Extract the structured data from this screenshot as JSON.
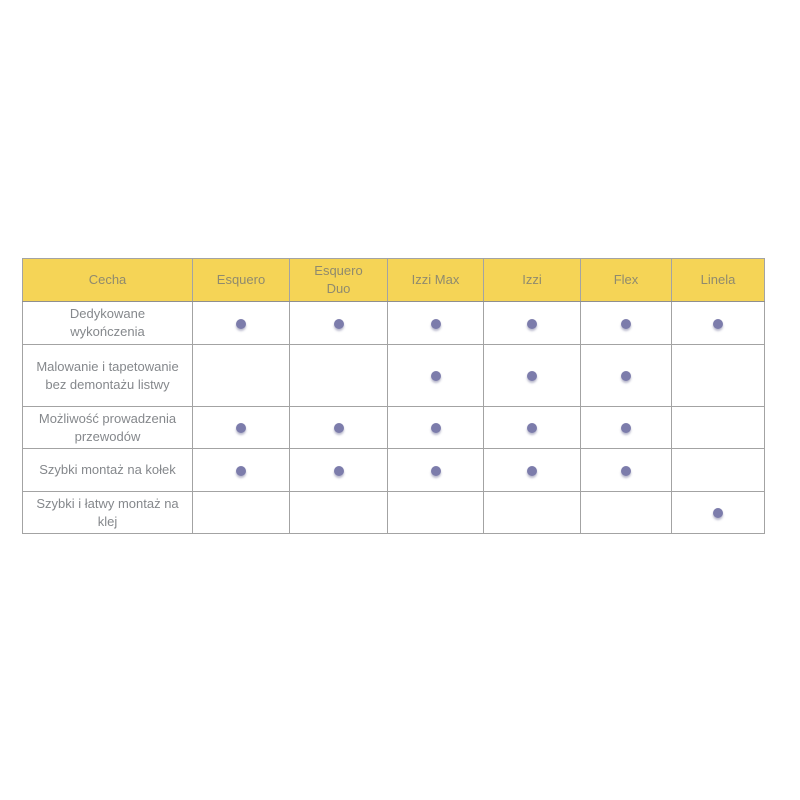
{
  "page": {
    "background": "#ffffff"
  },
  "table": {
    "title": "feature-comparison-table",
    "columns": [
      "Cecha",
      "Esquero",
      "Esquero Duo",
      "Izzi Max",
      "Izzi",
      "Flex",
      "Linela"
    ],
    "rows": [
      {
        "feature": "Dedykowane wykończenia",
        "values": [
          true,
          true,
          true,
          true,
          true,
          true
        ]
      },
      {
        "feature": "Malowanie i tapetowanie bez demontażu listwy",
        "values": [
          false,
          false,
          true,
          true,
          true,
          false
        ]
      },
      {
        "feature": "Możliwość prowadzenia przewodów",
        "values": [
          true,
          true,
          true,
          true,
          true,
          false
        ]
      },
      {
        "feature": "Szybki montaż na kołek",
        "values": [
          true,
          true,
          true,
          true,
          true,
          false
        ]
      },
      {
        "feature": "Szybki i łatwy montaż na klej",
        "values": [
          false,
          false,
          false,
          false,
          false,
          true
        ]
      }
    ]
  },
  "colors": {
    "header_background": "#F5D456",
    "header_text": "#8F8A6E",
    "body_text": "#85888C",
    "border": "#A3A3A3",
    "dot": "#7C7CAB"
  }
}
